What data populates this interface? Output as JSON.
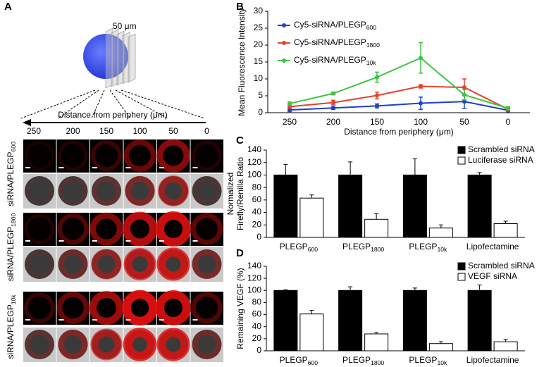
{
  "panel_a": {
    "label": "A",
    "scale_bar": "50 μm",
    "axis_label": "Distance from periphery (μm)",
    "ticks": [
      "250",
      "200",
      "150",
      "100",
      "50",
      "0"
    ],
    "rows": [
      "siRNA/PLEGP600",
      "siRNA/PLEGP1800",
      "siRNA/PLEGP10k"
    ]
  },
  "chart_data": [
    {
      "type": "line",
      "panel_label": "B",
      "x_label": "Distance from periphery (μm)",
      "y_label": "Mean Fluorescence Intensity",
      "categories": [
        "250",
        "200",
        "150",
        "100",
        "50",
        "0"
      ],
      "ylim": [
        0,
        30
      ],
      "yticks": [
        0,
        5,
        10,
        15,
        20,
        25,
        30
      ],
      "legend": "top-left",
      "series": [
        {
          "name": "Cy5-siRNA/PLEGP600",
          "color": "#1f3fd1",
          "values": [
            0.8,
            1.4,
            2.0,
            2.8,
            3.3,
            0.7
          ],
          "errors": [
            0.5,
            0.4,
            0.6,
            1.8,
            2.0,
            0.4
          ]
        },
        {
          "name": "Cy5-siRNA/PLEGP1800",
          "color": "#e8402a",
          "values": [
            1.8,
            3.0,
            5.1,
            7.8,
            7.5,
            1.0
          ],
          "errors": [
            0.5,
            0.7,
            1.0,
            0.5,
            2.5,
            0.5
          ]
        },
        {
          "name": "Cy5-siRNA/PLEGP10k",
          "color": "#3fc43f",
          "values": [
            2.7,
            5.7,
            10.5,
            16.2,
            5.3,
            1.3
          ],
          "errors": [
            0.5,
            0.4,
            1.5,
            4.5,
            1.5,
            0.5
          ]
        }
      ]
    },
    {
      "type": "bar",
      "panel_label": "C",
      "y_label": [
        "Normalized",
        "Firefly/Renilla Ratio"
      ],
      "categories": [
        "PLEGP600",
        "PLEGP1800",
        "PLEGP10k",
        "Lipofectamine"
      ],
      "ylim": [
        0,
        140
      ],
      "yticks": [
        0,
        20,
        40,
        60,
        80,
        100,
        120,
        140
      ],
      "legend": "top-right",
      "series": [
        {
          "name": "Scrambled siRNA",
          "color": "#000000",
          "values": [
            100,
            100,
            100,
            100
          ],
          "errors": [
            17,
            21,
            26,
            4
          ]
        },
        {
          "name": "Luciferase siRNA",
          "color": "#ffffff",
          "values": [
            63,
            29,
            15,
            22
          ],
          "errors": [
            5,
            9,
            5,
            4
          ]
        }
      ]
    },
    {
      "type": "bar",
      "panel_label": "D",
      "y_label": [
        "Remaining VEGF (%)"
      ],
      "categories": [
        "PLEGP600",
        "PLEGP1800",
        "PLEGP10k",
        "Lipofectamine"
      ],
      "ylim": [
        0,
        140
      ],
      "yticks": [
        0,
        20,
        40,
        60,
        80,
        100,
        120,
        140
      ],
      "legend": "top-right",
      "series": [
        {
          "name": "Scrambled siRNA",
          "color": "#000000",
          "values": [
            100,
            100,
            100,
            100
          ],
          "errors": [
            1,
            6,
            4,
            9
          ]
        },
        {
          "name": "VEGF siRNA",
          "color": "#ffffff",
          "values": [
            61,
            28,
            12,
            15
          ],
          "errors": [
            6,
            2,
            3,
            4
          ]
        }
      ]
    }
  ]
}
